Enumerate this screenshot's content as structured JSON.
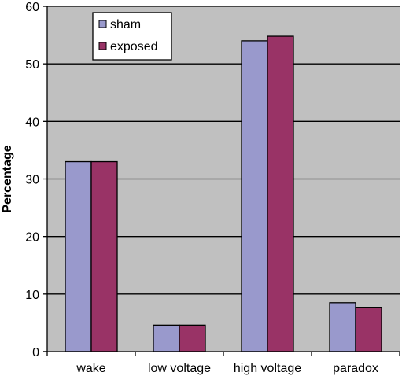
{
  "chart_data": {
    "type": "bar",
    "title": "",
    "xlabel": "",
    "ylabel": "Percentage",
    "categories": [
      "wake",
      "low voltage",
      "high voltage",
      "paradox"
    ],
    "series": [
      {
        "name": "sham",
        "values": [
          33,
          4.6,
          54,
          8.5
        ],
        "color": "#9999cc"
      },
      {
        "name": "exposed",
        "values": [
          33,
          4.6,
          54.8,
          7.7
        ],
        "color": "#993366"
      }
    ],
    "ylim": [
      0,
      60
    ],
    "yticks": [
      0,
      10,
      20,
      30,
      40,
      50,
      60
    ],
    "grid": true,
    "legend_position": "top-left",
    "plot_background": "#c0c0c0"
  }
}
